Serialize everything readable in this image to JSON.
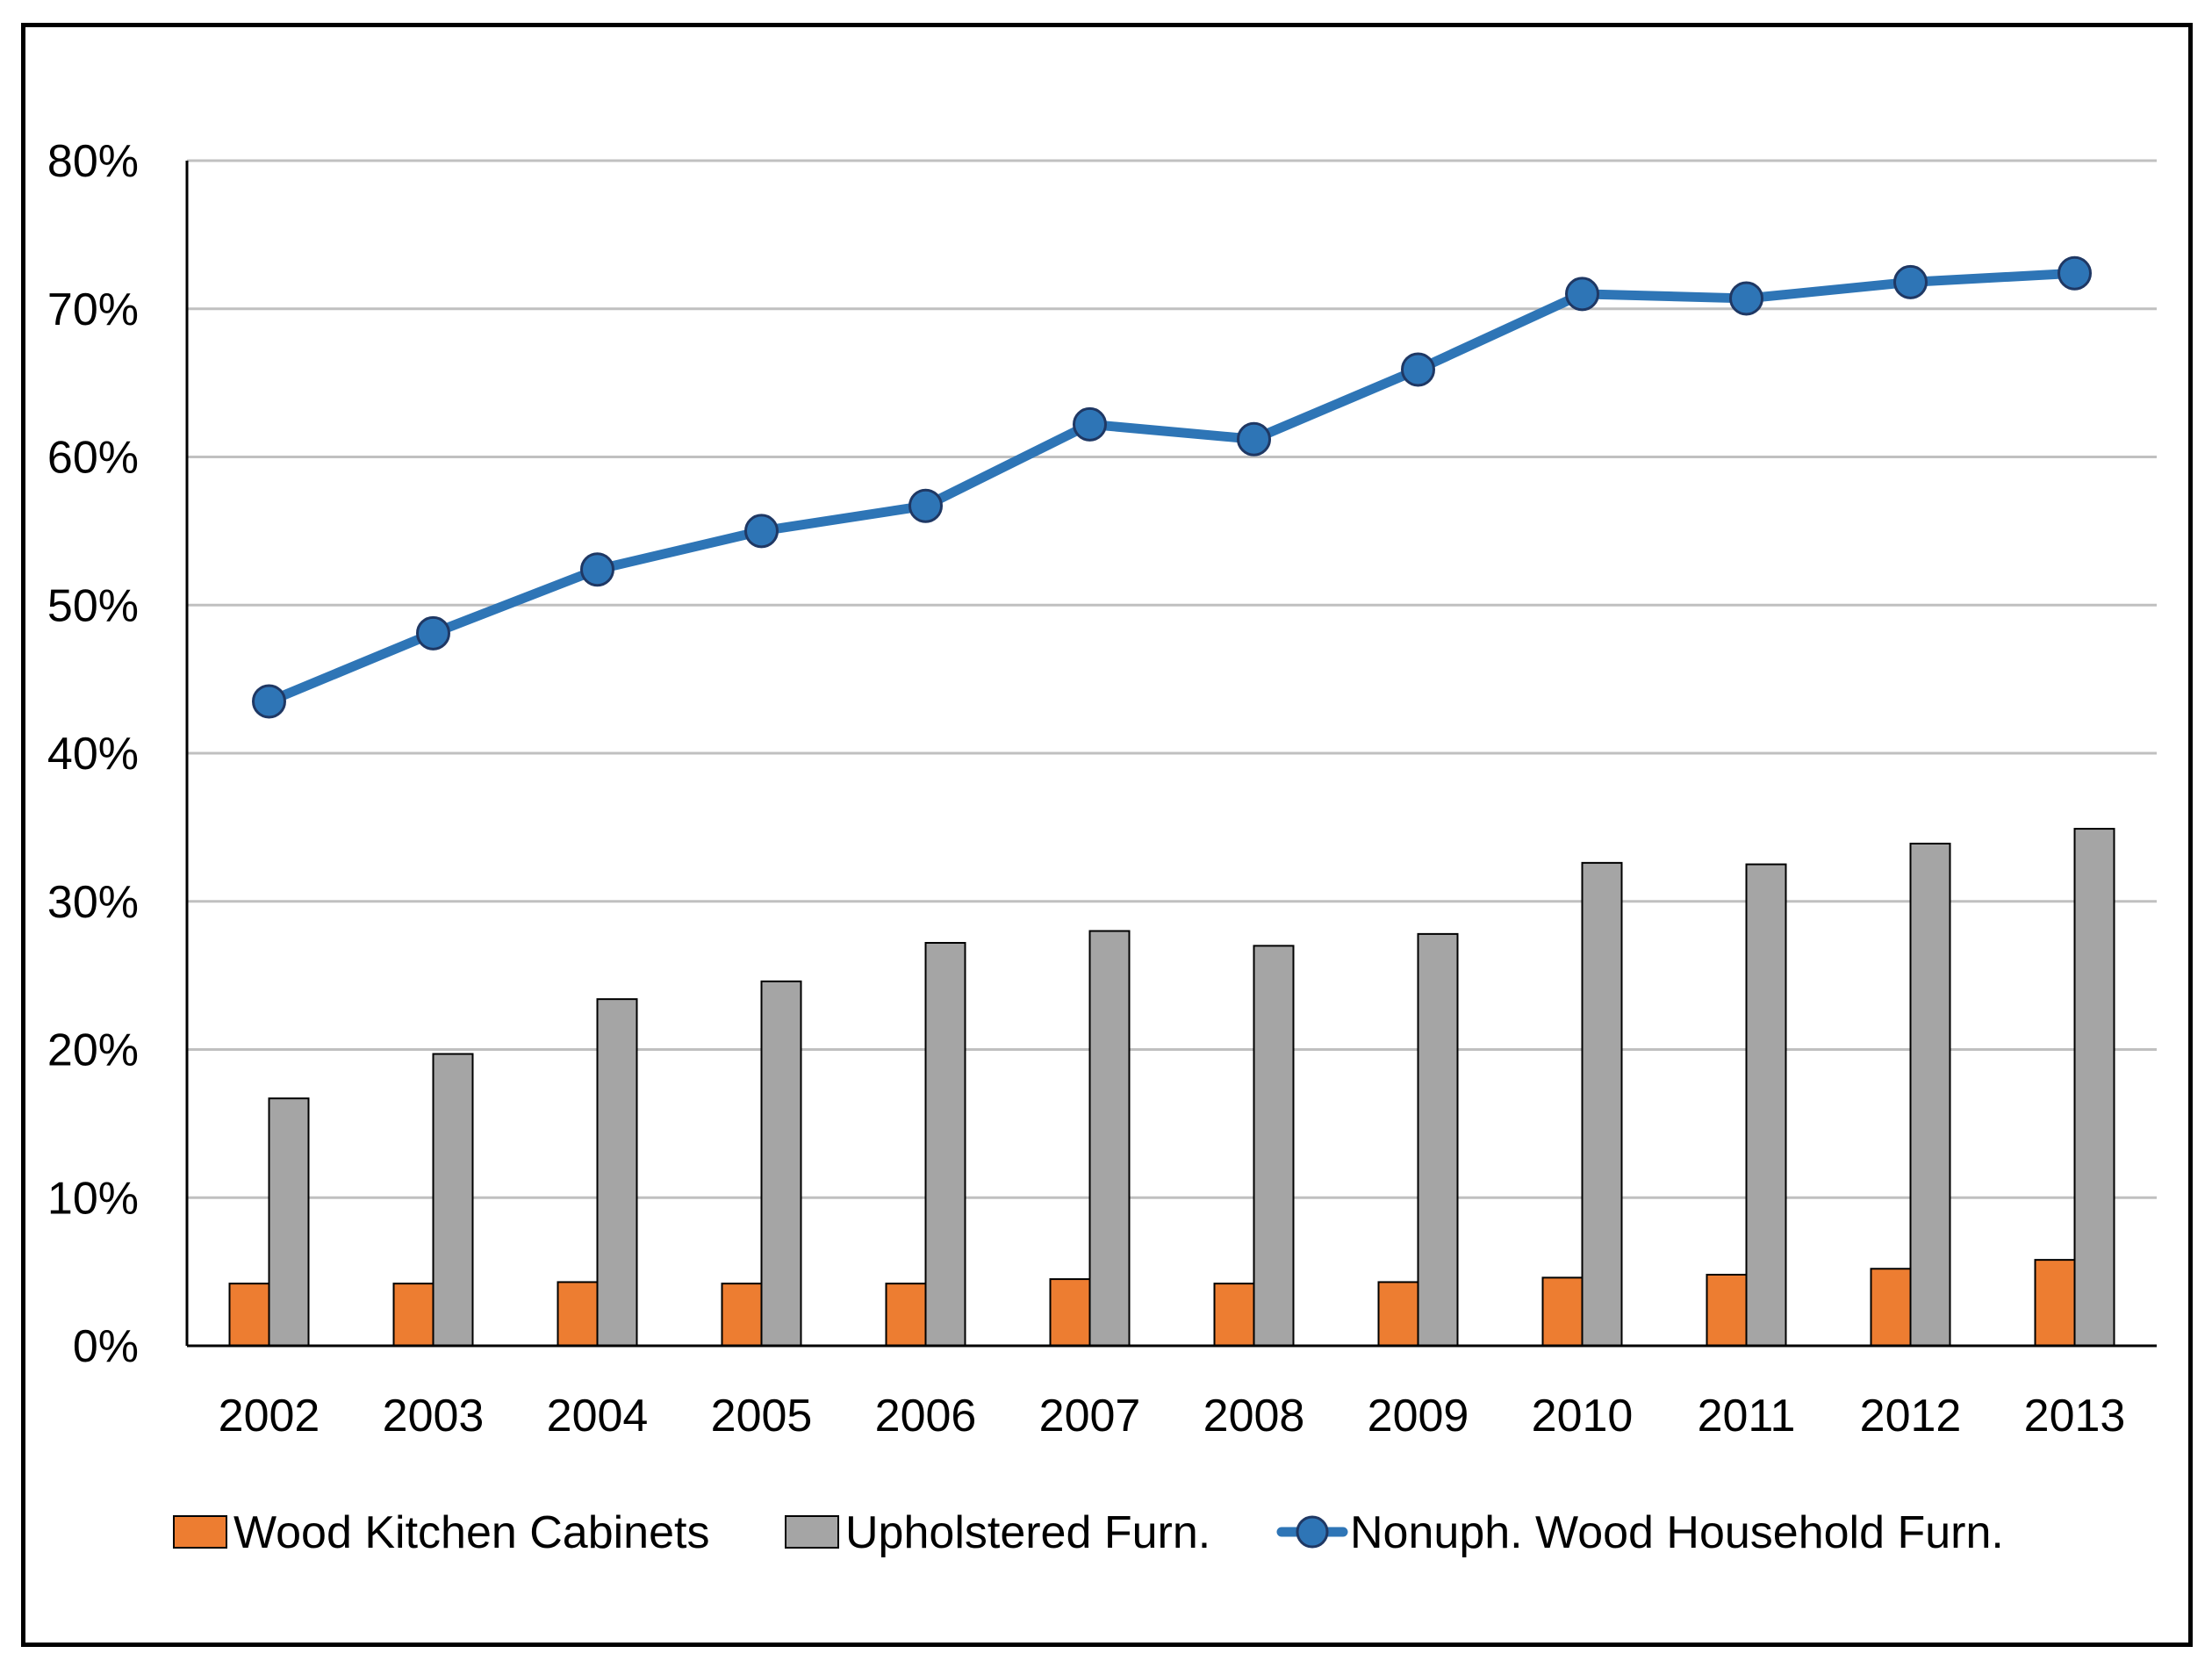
{
  "chart_data": {
    "type": "bar",
    "title": "",
    "xlabel": "",
    "ylabel": "",
    "categories": [
      "2002",
      "2003",
      "2004",
      "2005",
      "2006",
      "2007",
      "2008",
      "2009",
      "2010",
      "2011",
      "2012",
      "2013"
    ],
    "ylim": [
      0,
      0.8
    ],
    "yticks": [
      0,
      0.1,
      0.2,
      0.3,
      0.4,
      0.5,
      0.6,
      0.7,
      0.8
    ],
    "ytick_labels": [
      "0%",
      "10%",
      "20%",
      "30%",
      "40%",
      "50%",
      "60%",
      "70%",
      "80%"
    ],
    "grid": true,
    "legend_position": "bottom",
    "series": [
      {
        "name": "Wood Kitchen Cabinets",
        "render": "bar",
        "color": "#ED7D31",
        "values": [
          0.042,
          0.042,
          0.043,
          0.042,
          0.042,
          0.045,
          0.042,
          0.043,
          0.046,
          0.048,
          0.052,
          0.058
        ]
      },
      {
        "name": "Upholstered Furn.",
        "render": "bar",
        "color": "#A5A5A5",
        "values": [
          0.167,
          0.197,
          0.234,
          0.246,
          0.272,
          0.28,
          0.27,
          0.278,
          0.326,
          0.325,
          0.339,
          0.349
        ]
      },
      {
        "name": "Nonuph. Wood Household Furn.",
        "render": "line",
        "marker": "circle",
        "color": "#2E75B6",
        "values": [
          0.435,
          0.481,
          0.524,
          0.55,
          0.567,
          0.622,
          0.612,
          0.659,
          0.71,
          0.707,
          0.718,
          0.724
        ]
      }
    ]
  }
}
